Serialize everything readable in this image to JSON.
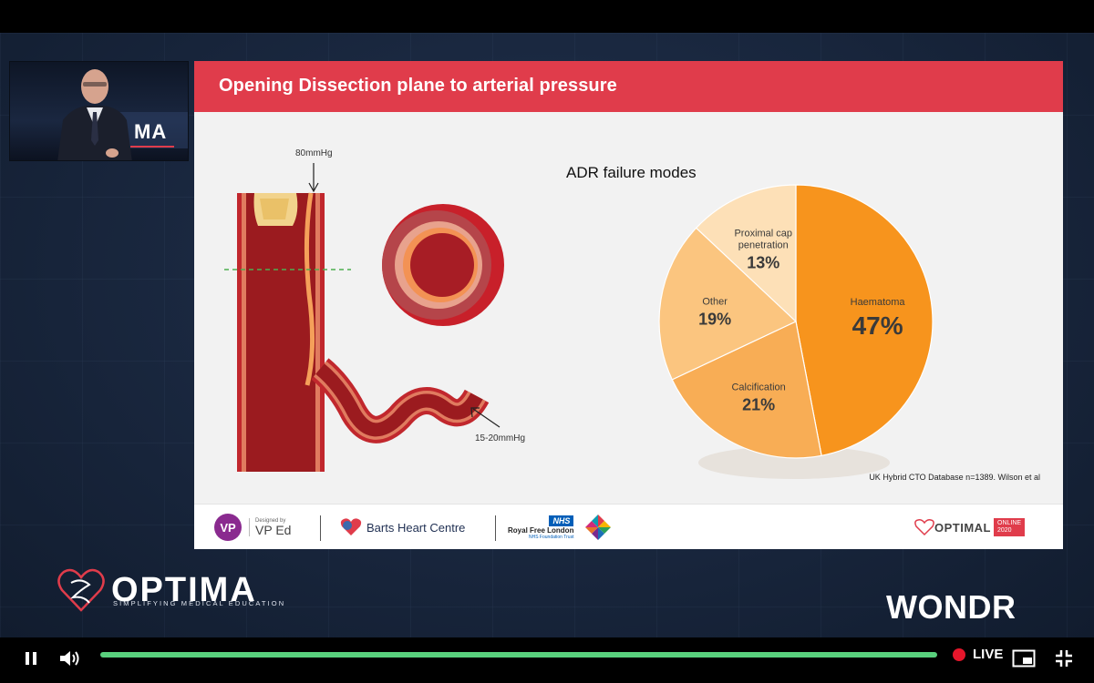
{
  "presenter": {
    "badge_text": "MA"
  },
  "slide": {
    "title": "Opening Dissection plane to arterial pressure",
    "annotations": {
      "pressure_high": "80mmHg",
      "pressure_low": "15-20mmHg"
    },
    "source_note": "UK Hybrid CTO Database  n=1389.  Wilson et al",
    "chart_title": "ADR failure modes"
  },
  "chart_data": {
    "type": "pie",
    "title": "ADR failure modes",
    "slices": [
      {
        "label": "Haematoma",
        "value": 47,
        "value_label": "47%",
        "color": "#f7941d"
      },
      {
        "label": "Calcification",
        "value": 21,
        "value_label": "21%",
        "color": "#f8ad55"
      },
      {
        "label": "Other",
        "value": 19,
        "value_label": "19%",
        "color": "#fbc57f"
      },
      {
        "label": "Proximal cap penetration",
        "value": 13,
        "value_label": "13%",
        "color": "#fde0b7"
      }
    ]
  },
  "footer": {
    "designed_by_small": "Designed by",
    "designed_by_name": "VP Ed",
    "vp_mark": "VP",
    "barts": "Barts Heart Centre",
    "nhs": "NHS",
    "royal_free": "Royal Free London",
    "royal_free_sub": "NHS Foundation Trust",
    "optimal": "OPTIMAL",
    "online": "ONLINE",
    "year": "2020"
  },
  "branding": {
    "optima": "OPTIMA",
    "optima_tagline": "SIMPLIFYING MEDICAL EDUCATION",
    "wondr": "WONDR"
  },
  "player": {
    "live_label": "LIVE",
    "progress_percent": 100,
    "accent_color": "#59d07d",
    "live_color": "#e5162b"
  }
}
